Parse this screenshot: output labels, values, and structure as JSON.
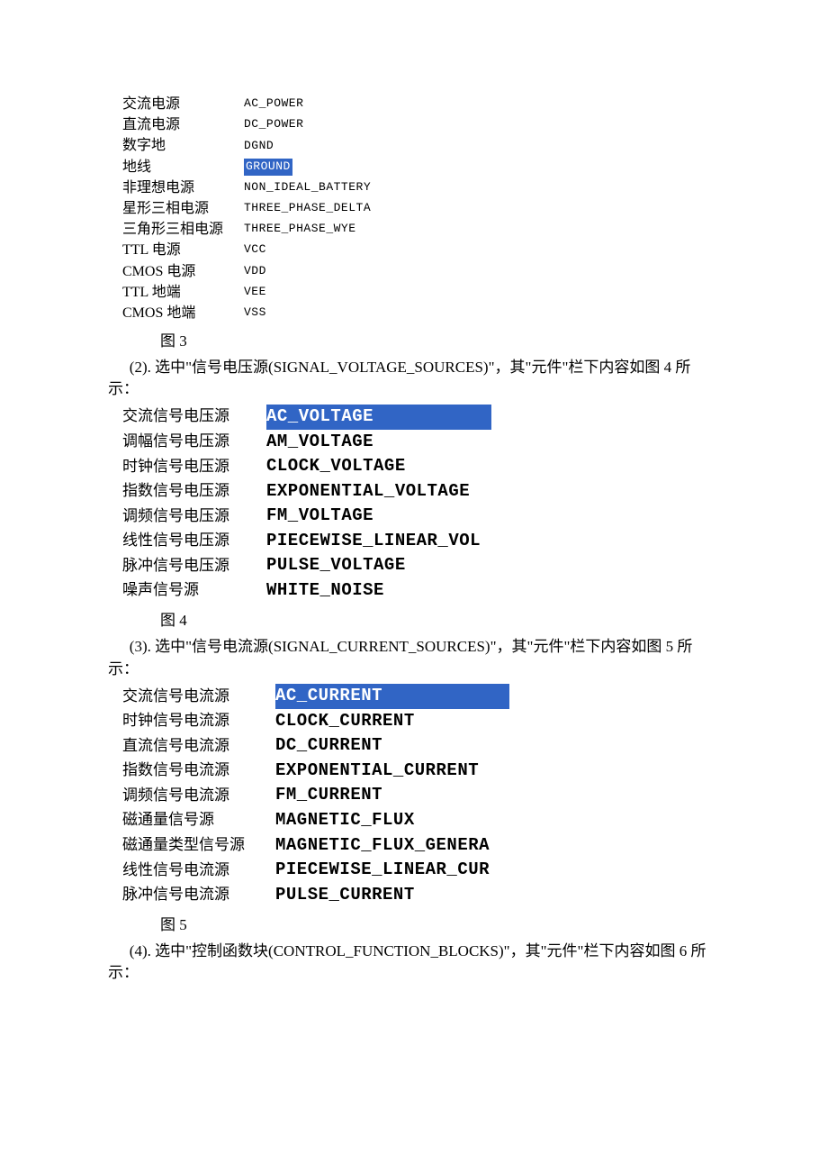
{
  "colors": {
    "selection_bg": "#3165c5",
    "selection_fg": "#ffffff",
    "text": "#000000",
    "page_bg": "#ffffff"
  },
  "fig3": {
    "caption": "图 3",
    "rows": [
      {
        "cn": "交流电源",
        "en": "AC_POWER",
        "selected": false
      },
      {
        "cn": "直流电源",
        "en": "DC_POWER",
        "selected": false
      },
      {
        "cn": "数字地",
        "en": "DGND",
        "selected": false
      },
      {
        "cn": "地线",
        "en": "GROUND",
        "selected": true
      },
      {
        "cn": "非理想电源",
        "en": "NON_IDEAL_BATTERY",
        "selected": false
      },
      {
        "cn": "星形三相电源",
        "en": "THREE_PHASE_DELTA",
        "selected": false
      },
      {
        "cn": "三角形三相电源",
        "en": "THREE_PHASE_WYE",
        "selected": false
      },
      {
        "cn": "TTL 电源",
        "en": "VCC",
        "selected": false
      },
      {
        "cn": "CMOS 电源",
        "en": "VDD",
        "selected": false
      },
      {
        "cn": "TTL 地端",
        "en": "VEE",
        "selected": false
      },
      {
        "cn": "CMOS 地端",
        "en": "VSS",
        "selected": false
      }
    ]
  },
  "para2": "(2). 选中\"信号电压源(SIGNAL_VOLTAGE_SOURCES)\"，其\"元件\"栏下内容如图 4 所示：",
  "fig4": {
    "caption": "图 4",
    "rows": [
      {
        "cn": "交流信号电压源",
        "en": "AC_VOLTAGE",
        "selected": true
      },
      {
        "cn": "调幅信号电压源",
        "en": "AM_VOLTAGE",
        "selected": false
      },
      {
        "cn": "时钟信号电压源",
        "en": "CLOCK_VOLTAGE",
        "selected": false
      },
      {
        "cn": "指数信号电压源",
        "en": "EXPONENTIAL_VOLTAGE",
        "selected": false
      },
      {
        "cn": "调频信号电压源",
        "en": "FM_VOLTAGE",
        "selected": false
      },
      {
        "cn": "线性信号电压源",
        "en": "PIECEWISE_LINEAR_VOL",
        "selected": false
      },
      {
        "cn": "脉冲信号电压源",
        "en": "PULSE_VOLTAGE",
        "selected": false
      },
      {
        "cn": "噪声信号源",
        "en": "WHITE_NOISE",
        "selected": false
      }
    ]
  },
  "para3": "(3). 选中\"信号电流源(SIGNAL_CURRENT_SOURCES)\"，其\"元件\"栏下内容如图 5 所示：",
  "fig5": {
    "caption": "图 5",
    "rows": [
      {
        "cn": "交流信号电流源",
        "en": "AC_CURRENT",
        "selected": true
      },
      {
        "cn": "时钟信号电流源",
        "en": "CLOCK_CURRENT",
        "selected": false
      },
      {
        "cn": "直流信号电流源",
        "en": "DC_CURRENT",
        "selected": false
      },
      {
        "cn": "指数信号电流源",
        "en": "EXPONENTIAL_CURRENT",
        "selected": false
      },
      {
        "cn": "调频信号电流源",
        "en": "FM_CURRENT",
        "selected": false
      },
      {
        "cn": "磁通量信号源",
        "en": "MAGNETIC_FLUX",
        "selected": false
      },
      {
        "cn": "磁通量类型信号源",
        "en": "MAGNETIC_FLUX_GENERA",
        "selected": false
      },
      {
        "cn": "线性信号电流源",
        "en": "PIECEWISE_LINEAR_CUR",
        "selected": false
      },
      {
        "cn": "脉冲信号电流源",
        "en": "PULSE_CURRENT",
        "selected": false
      }
    ]
  },
  "para4": "(4). 选中\"控制函数块(CONTROL_FUNCTION_BLOCKS)\"，其\"元件\"栏下内容如图 6 所示："
}
